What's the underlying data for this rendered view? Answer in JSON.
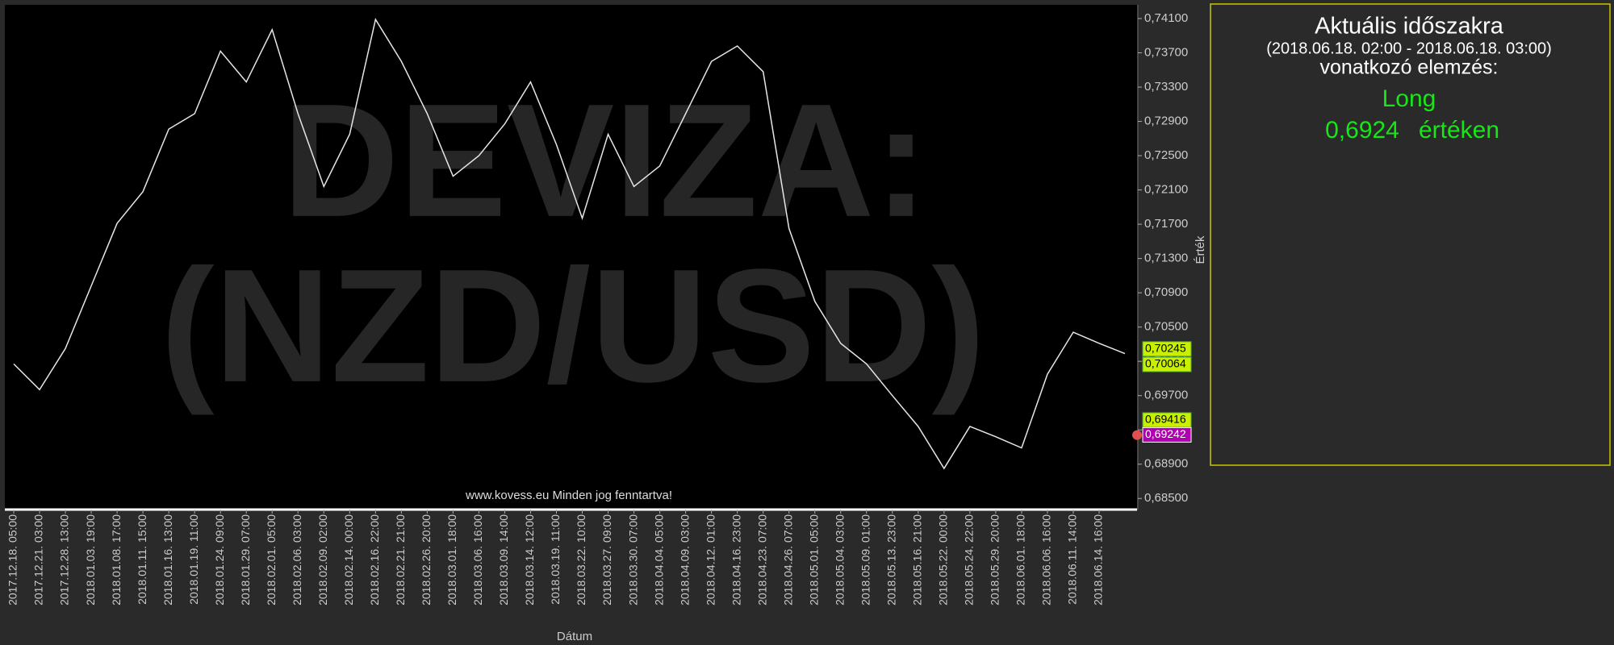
{
  "chart_data": {
    "type": "line",
    "watermark": [
      "DEVIZA:",
      "(NZD/USD)"
    ],
    "footer": "www.kovess.eu Minden jog fenntartva!",
    "x_label": "Dátum",
    "y_label": "Érték",
    "categories": [
      "2017.12.18. 05:00",
      "2017.12.21. 03:00",
      "2017.12.28. 13:00",
      "2018.01.03. 19:00",
      "2018.01.08. 17:00",
      "2018.01.11. 15:00",
      "2018.01.16. 13:00",
      "2018.01.19. 11:00",
      "2018.01.24. 09:00",
      "2018.01.29. 07:00",
      "2018.02.01. 05:00",
      "2018.02.06. 03:00",
      "2018.02.09. 02:00",
      "2018.02.14. 00:00",
      "2018.02.16. 22:00",
      "2018.02.21. 21:00",
      "2018.02.26. 20:00",
      "2018.03.01. 18:00",
      "2018.03.06. 16:00",
      "2018.03.09. 14:00",
      "2018.03.14. 12:00",
      "2018.03.19. 11:00",
      "2018.03.22. 10:00",
      "2018.03.27. 09:00",
      "2018.03.30. 07:00",
      "2018.04.04. 05:00",
      "2018.04.09. 03:00",
      "2018.04.12. 01:00",
      "2018.04.16. 23:00",
      "2018.04.23. 07:00",
      "2018.04.26. 07:00",
      "2018.05.01. 05:00",
      "2018.05.04. 03:00",
      "2018.05.09. 01:00",
      "2018.05.13. 23:00",
      "2018.05.16. 21:00",
      "2018.05.22. 00:00",
      "2018.05.24. 22:00",
      "2018.05.29. 20:00",
      "2018.06.01. 18:00",
      "2018.06.06. 16:00",
      "2018.06.11. 14:00",
      "2018.06.14. 16:00",
      null
    ],
    "series": [
      {
        "name": "NZD/USD",
        "color": "#e6e6e6",
        "values": [
          0.7007,
          0.6977,
          0.7025,
          0.7098,
          0.7171,
          0.7208,
          0.7281,
          0.7299,
          0.7372,
          0.7336,
          0.7397,
          0.7299,
          0.7214,
          0.7275,
          0.7409,
          0.736,
          0.7299,
          0.7226,
          0.725,
          0.7287,
          0.7336,
          0.7263,
          0.7177,
          0.7275,
          0.7214,
          0.7238,
          0.7299,
          0.736,
          0.7378,
          0.7348,
          0.7165,
          0.708,
          0.7031,
          0.7007,
          0.697,
          0.6934,
          0.6885,
          0.6934,
          0.6922,
          0.6909,
          0.6995,
          0.7044,
          0.7031,
          0.7019
        ]
      }
    ],
    "ylim": [
      0.6838,
      0.7426
    ],
    "yticks": [
      {
        "value": 0.741,
        "label": "0,74100"
      },
      {
        "value": 0.737,
        "label": "0,73700"
      },
      {
        "value": 0.733,
        "label": "0,73300"
      },
      {
        "value": 0.729,
        "label": "0,72900"
      },
      {
        "value": 0.725,
        "label": "0,72500"
      },
      {
        "value": 0.721,
        "label": "0,72100"
      },
      {
        "value": 0.717,
        "label": "0,71700"
      },
      {
        "value": 0.713,
        "label": "0,71300"
      },
      {
        "value": 0.709,
        "label": "0,70900"
      },
      {
        "value": 0.705,
        "label": "0,70500"
      },
      {
        "value": 0.701,
        "label": "0,70100"
      },
      {
        "value": 0.697,
        "label": "0,69700"
      },
      {
        "value": 0.693,
        "label": "0,69300"
      },
      {
        "value": 0.689,
        "label": "0,68900"
      },
      {
        "value": 0.685,
        "label": "0,68500"
      }
    ],
    "price_tags": [
      {
        "value": 0.70245,
        "label": "0,70245",
        "color": "#c8f000"
      },
      {
        "value": 0.70064,
        "label": "0,70064",
        "color": "#c8f000"
      },
      {
        "value": 0.69416,
        "label": "0,69416",
        "color": "#c8f000"
      },
      {
        "value": 0.69242,
        "label": "0,69242",
        "color": "#b000b0"
      }
    ],
    "panel": {
      "title": "Aktuális időszakra",
      "period": "(2018.06.18. 02:00 - 2018.06.18. 03:00)",
      "subtitle": "vonatkozó elemzés:",
      "direction": "Long",
      "price": {
        "value": 0.6924,
        "label": "0,6924"
      },
      "suffix": "értéken"
    }
  }
}
